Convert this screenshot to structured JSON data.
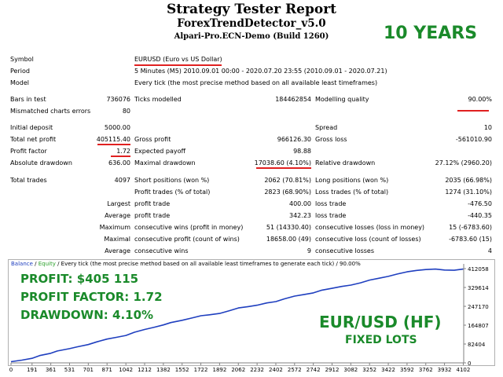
{
  "header": {
    "title": "Strategy Tester Report",
    "subtitle": "ForexTrendDetector_v5.0",
    "build": "Alpari-Pro.ECN-Demo (Build 1260)"
  },
  "promo": {
    "years": "10 YEARS",
    "profit_label": "PROFIT:",
    "profit_value": "$405 115",
    "pf_label": "PROFIT FACTOR:",
    "pf_value": "1.72",
    "dd_label": "DRAWDOWN:",
    "dd_value": "4.10%",
    "pair": "EUR/USD (HF)",
    "lots": "FIXED LOTS"
  },
  "report": {
    "symbol_label": "Symbol",
    "symbol_value": "EURUSD (Euro vs US Dollar)",
    "period_label": "Period",
    "period_value": "5 Minutes (M5) 2010.09.01 00:00 - 2020.07.20 23:55 (2010.09.01 - 2020.07.21)",
    "model_label": "Model",
    "model_value": "Every tick (the most precise method based on all available least timeframes)",
    "bars_label": "Bars in test",
    "bars_value": "736076",
    "ticks_label": "Ticks modelled",
    "ticks_value": "184462854",
    "quality_label": "Modelling quality",
    "quality_value": "90.00%",
    "mismatch_label": "Mismatched charts errors",
    "mismatch_value": "80",
    "deposit_label": "Initial deposit",
    "deposit_value": "5000.00",
    "spread_label": "Spread",
    "spread_value": "10",
    "netprofit_label": "Total net profit",
    "netprofit_value": "405115.40",
    "grossprofit_label": "Gross profit",
    "grossprofit_value": "966126.30",
    "grossloss_label": "Gross loss",
    "grossloss_value": "-561010.90",
    "pf_label": "Profit factor",
    "pf_value": "1.72",
    "payoff_label": "Expected payoff",
    "payoff_value": "98.88",
    "absdd_label": "Absolute drawdown",
    "absdd_value": "636.00",
    "maxdd_label": "Maximal drawdown",
    "maxdd_value": "17038.60 (4.10%)",
    "reldd_label": "Relative drawdown",
    "reldd_value": "27.12% (2960.20)",
    "trades_label": "Total trades",
    "trades_value": "4097",
    "short_label": "Short positions (won %)",
    "short_value": "2062 (70.81%)",
    "long_label": "Long positions (won %)",
    "long_value": "2035 (66.98%)",
    "ptrades_label": "Profit trades (% of total)",
    "ptrades_value": "2823 (68.90%)",
    "ltrades_label": "Loss trades (% of total)",
    "ltrades_value": "1274 (31.10%)",
    "largest_label": "Largest",
    "lprofit_label": "profit trade",
    "lprofit_value": "400.00",
    "lloss_label": "loss trade",
    "lloss_value": "-476.50",
    "average_label": "Average",
    "aprofit_label": "profit trade",
    "aprofit_value": "342.23",
    "aloss_label": "loss trade",
    "aloss_value": "-440.35",
    "maximum_label": "Maximum",
    "mwins_label": "consecutive wins (profit in money)",
    "mwins_value": "51 (14330.40)",
    "mlosses_label": "consecutive losses (loss in money)",
    "mlosses_value": "15 (-6783.60)",
    "maximal_label": "Maximal",
    "mprofit_label": "consecutive profit (count of wins)",
    "mprofit_value": "18658.00 (49)",
    "mloss_label": "consecutive loss (count of losses)",
    "mloss_value": "-6783.60 (15)",
    "average2_label": "Average",
    "awins_label": "consecutive wins",
    "awins_value": "9",
    "alosses_label": "consecutive losses",
    "alosses_value": "4"
  },
  "chart_header": {
    "balance": "Balance",
    "sep": " / ",
    "equity": "Equity",
    "rest": " / Every tick (the most precise method based on all available least timeframes to generate each tick) / 90.00%"
  },
  "colors": {
    "balance": "#1f3fbf",
    "equity": "#2aa02a",
    "promo": "#1a8a2a",
    "highlight": "#e02020"
  },
  "chart_data": {
    "type": "line",
    "title": "",
    "xlabel": "",
    "ylabel": "",
    "x_ticks": [
      "0",
      "191",
      "361",
      "531",
      "701",
      "871",
      "1042",
      "1212",
      "1382",
      "1552",
      "1722",
      "1892",
      "2062",
      "2232",
      "2402",
      "2572",
      "2742",
      "2912",
      "3082",
      "3252",
      "3422",
      "3592",
      "3762",
      "3932",
      "4102"
    ],
    "y_ticks": [
      "412058",
      "329614",
      "247170",
      "164807",
      "82404",
      "0"
    ],
    "xlim": [
      0,
      4106
    ],
    "ylim": [
      0,
      412058
    ],
    "grid": false,
    "series": [
      {
        "name": "Balance",
        "x": [
          0,
          100,
          191,
          260,
          361,
          420,
          531,
          600,
          701,
          780,
          871,
          960,
          1042,
          1120,
          1212,
          1300,
          1382,
          1450,
          1552,
          1640,
          1722,
          1800,
          1892,
          1980,
          2062,
          2150,
          2232,
          2320,
          2402,
          2480,
          2572,
          2650,
          2742,
          2820,
          2912,
          3000,
          3082,
          3170,
          3252,
          3340,
          3422,
          3500,
          3592,
          3680,
          3762,
          3850,
          3932,
          4020,
          4102
        ],
        "values": [
          5000,
          12000,
          20000,
          32000,
          42000,
          52000,
          62000,
          70000,
          80000,
          92000,
          104000,
          112000,
          120000,
          134000,
          146000,
          156000,
          166000,
          176000,
          186000,
          196000,
          206000,
          210000,
          216000,
          228000,
          240000,
          246000,
          252000,
          262000,
          268000,
          280000,
          292000,
          298000,
          306000,
          318000,
          326000,
          334000,
          340000,
          350000,
          362000,
          370000,
          378000,
          388000,
          398000,
          404000,
          408000,
          410000,
          406000,
          405000,
          410000
        ]
      }
    ]
  }
}
